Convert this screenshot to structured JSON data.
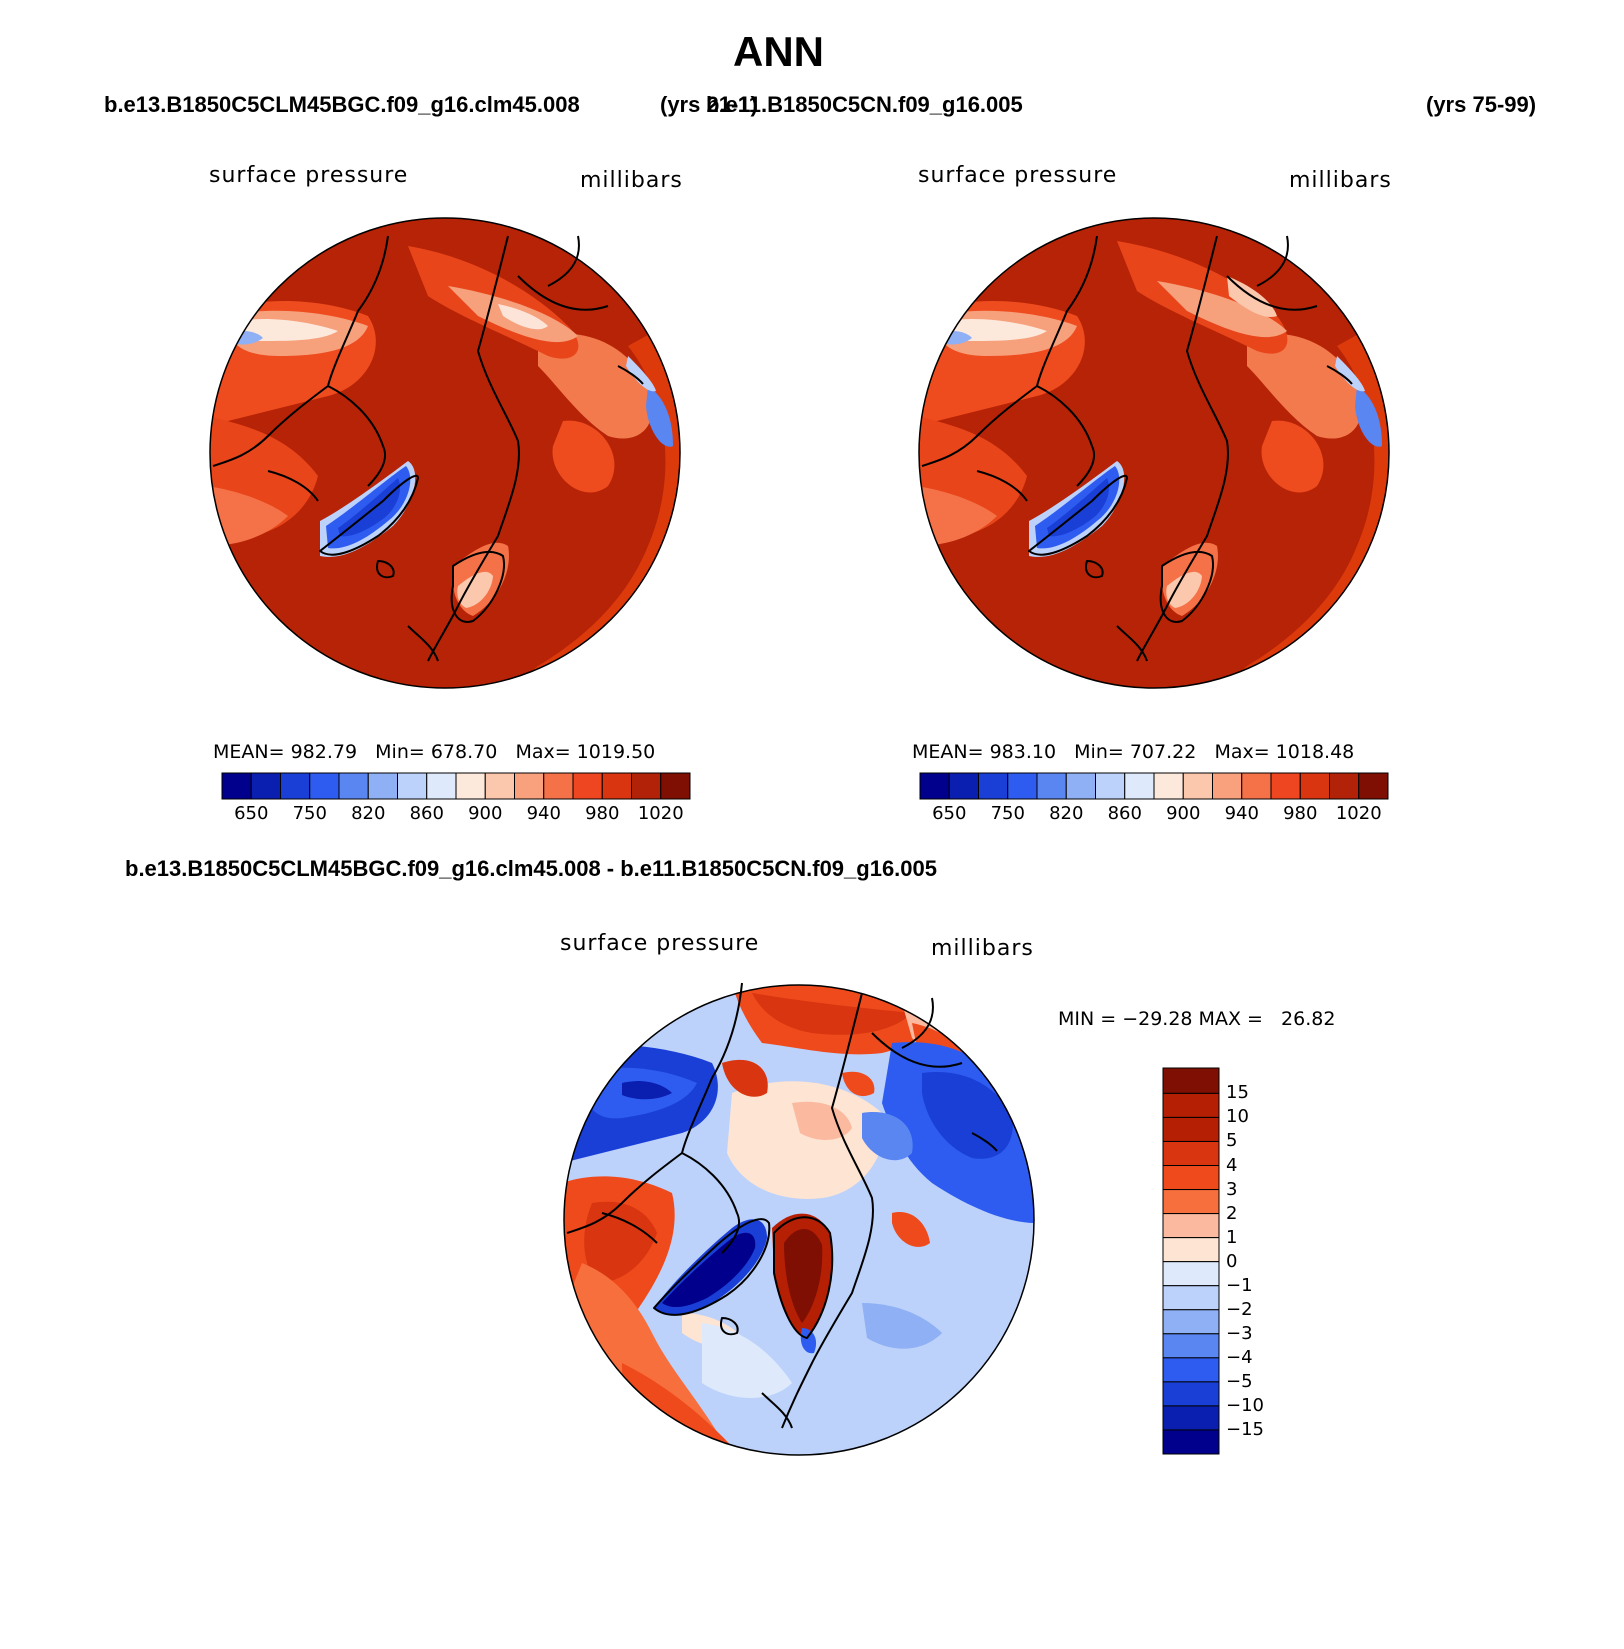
{
  "title": "ANN",
  "top_left": {
    "case": "b.e13.B1850C5CLM45BGC.f09_g16.clm45.008",
    "years": "(yrs 21-1)",
    "left_label": "surface pressure",
    "right_label": "millibars",
    "stats": "MEAN= 982.79   Min= 678.70   Max= 1019.50"
  },
  "top_right": {
    "case": "b.e11.B1850C5CN.f09_g16.005",
    "years": "(yrs 75-99)",
    "left_label": "surface pressure",
    "right_label": "millibars",
    "stats": "MEAN= 983.10   Min= 707.22   Max= 1018.48"
  },
  "bottom": {
    "title": "b.e13.B1850C5CLM45BGC.f09_g16.clm45.008 - b.e11.B1850C5CN.f09_g16.005",
    "left_label": "surface pressure",
    "right_label": "millibars",
    "minmax": "MIN = −29.28 MAX =   26.82"
  },
  "abs_colorbar": {
    "colors": [
      "#00008c",
      "#0a1fb0",
      "#1a3fd6",
      "#2e5cf0",
      "#5a86f2",
      "#8fb0f5",
      "#bcd2fa",
      "#deeafc",
      "#fde8dc",
      "#fcc8ad",
      "#f9a07c",
      "#f57147",
      "#ee4620",
      "#d83510",
      "#b22208",
      "#7e0f02"
    ],
    "labels": [
      "650",
      "750",
      "820",
      "860",
      "900",
      "940",
      "980",
      "1020"
    ]
  },
  "diff_colorbar": {
    "colors": [
      "#7e0f02",
      "#b51f04",
      "#d83510",
      "#ef4a1c",
      "#f76f3d",
      "#fbbaa0",
      "#fde4d3",
      "#deeafc",
      "#bcd2fa",
      "#8fb0f5",
      "#5a86f2",
      "#2e5cf0",
      "#1a3fd6",
      "#0a1fb0",
      "#00008c"
    ],
    "labels": [
      "15",
      "10",
      "5",
      "4",
      "3",
      "2",
      "1",
      "0",
      "−1",
      "−2",
      "−3",
      "−4",
      "−5",
      "−10",
      "−15"
    ]
  }
}
